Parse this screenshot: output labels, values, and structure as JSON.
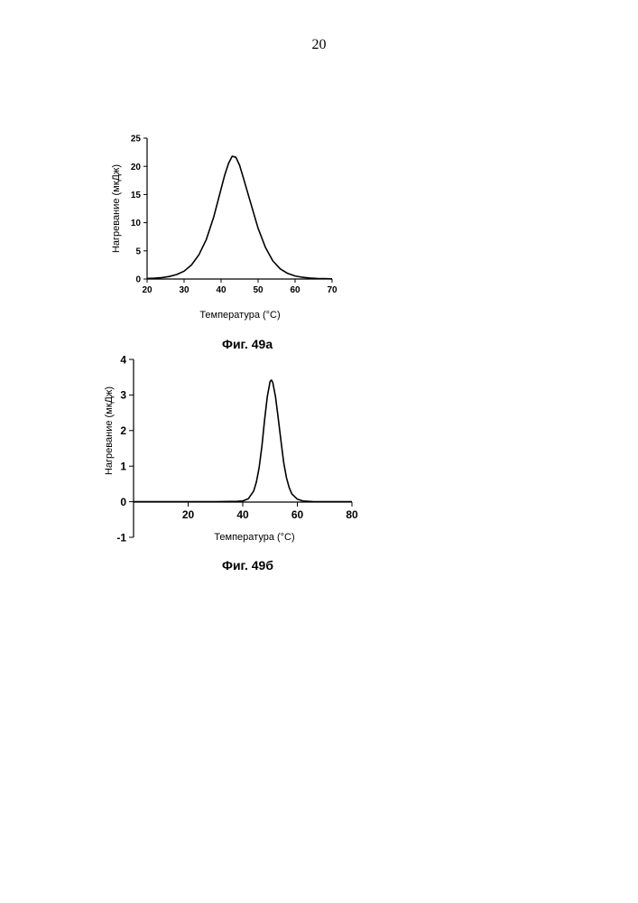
{
  "page_number": "20",
  "figures": [
    {
      "caption": "Фиг. 49а",
      "chart_data": {
        "type": "line",
        "xlabel": "Температура (°C)",
        "ylabel": "Нагревание (мкДж)",
        "xlim": [
          20,
          70
        ],
        "ylim": [
          0,
          25
        ],
        "x_ticks": [
          "20",
          "30",
          "40",
          "50",
          "60",
          "70"
        ],
        "y_ticks": [
          "0",
          "5",
          "10",
          "15",
          "20",
          "25"
        ],
        "grid": false,
        "series": [
          {
            "x": [
              20,
              22,
              24,
              26,
              28,
              30,
              32,
              34,
              36,
              38,
              40,
              41,
              42,
              43,
              44,
              45,
              46,
              48,
              50,
              52,
              54,
              56,
              58,
              60,
              62,
              64,
              66,
              68,
              70
            ],
            "values": [
              0.1,
              0.15,
              0.25,
              0.45,
              0.8,
              1.4,
              2.5,
              4.3,
              7.0,
              11.0,
              16.0,
              18.5,
              20.5,
              21.8,
              21.6,
              20.2,
              18.0,
              13.5,
              9.0,
              5.6,
              3.2,
              1.8,
              1.0,
              0.55,
              0.3,
              0.17,
              0.1,
              0.06,
              0.04
            ]
          }
        ]
      }
    },
    {
      "caption": "Фиг. 49б",
      "chart_data": {
        "type": "line",
        "xlabel": "Температура (°C)",
        "ylabel": "Нагревание (мкДж)",
        "xlim": [
          0,
          80
        ],
        "ylim": [
          -1,
          4
        ],
        "x_ticks": [
          "20",
          "40",
          "60",
          "80"
        ],
        "y_ticks": [
          "-1",
          "0",
          "1",
          "2",
          "3",
          "4"
        ],
        "grid": false,
        "series": [
          {
            "x": [
              0,
              10,
              20,
              30,
              38,
              40,
              42,
              44,
              45,
              46,
              47,
              48,
              49,
              50,
              50.5,
              51,
              52,
              53,
              54,
              55,
              56,
              57,
              58,
              60,
              62,
              64,
              66,
              70,
              80
            ],
            "values": [
              0,
              0,
              0,
              0,
              0.01,
              0.02,
              0.08,
              0.3,
              0.55,
              0.95,
              1.55,
              2.3,
              2.95,
              3.38,
              3.42,
              3.35,
              2.95,
              2.35,
              1.7,
              1.1,
              0.68,
              0.4,
              0.22,
              0.07,
              0.02,
              0.01,
              0,
              0,
              0
            ]
          }
        ]
      }
    }
  ]
}
